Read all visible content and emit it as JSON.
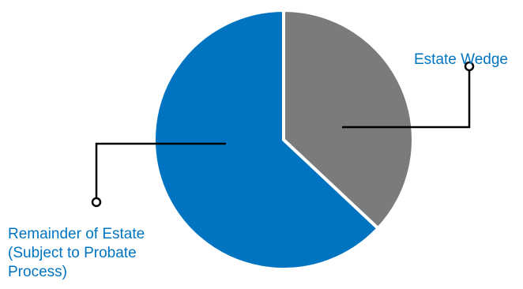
{
  "chart_data": {
    "type": "pie",
    "title": "",
    "slices": [
      {
        "label": "Estate Wedge",
        "value": 37,
        "color": "#7a7b7d"
      },
      {
        "label_lines": [
          "Remainder of Estate",
          "(Subject to Probate",
          "Process)"
        ],
        "value": 63,
        "color": "#0074c1"
      }
    ],
    "start_angle_deg": 0,
    "direction": "clockwise",
    "legend": "none",
    "label_color": "#0074c1",
    "leader_line_color": "#000000"
  }
}
